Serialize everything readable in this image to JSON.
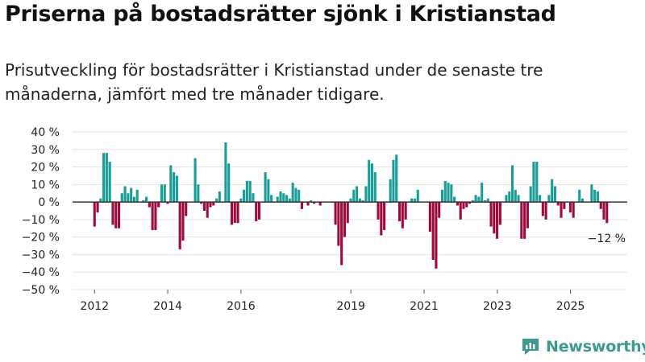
{
  "title": "Priserna på bostadsrätter sjönk i Kristianstad",
  "subtitle": "Prisutveckling för bostadsrätter i Kristianstad under de senaste tre månaderna, jämfört med tre månader tidigare.",
  "brand": "Newsworthy",
  "colors": {
    "positive": "#1a9d96",
    "negative": "#9b0b3e",
    "grid": "#e6e6e6",
    "zero_line": "#333333",
    "brand": "#3d9a8c"
  },
  "chart_data": {
    "type": "bar",
    "title": "Priserna på bostadsrätter sjönk i Kristianstad",
    "xlabel": "",
    "ylabel": "",
    "ylim": [
      -50,
      40
    ],
    "yticks": [
      40,
      30,
      20,
      10,
      0,
      -10,
      -20,
      -30,
      -40,
      -50
    ],
    "ytick_labels": [
      "40 %",
      "30 %",
      "20 %",
      "10 %",
      "0 %",
      "−10 %",
      "−20 %",
      "−30 %",
      "−40 %",
      "−50 %"
    ],
    "x_range": [
      2011.4,
      2026.55
    ],
    "xticks": [
      2012,
      2014,
      2016,
      2019,
      2021,
      2023,
      2025
    ],
    "xtick_labels": [
      "2012",
      "2014",
      "2016",
      "2019",
      "2021",
      "2023",
      "2025"
    ],
    "grid": true,
    "last_label": "−12 %",
    "start": 2012.0,
    "step": 0.0833,
    "values": [
      -14,
      -6,
      2,
      28,
      28,
      23,
      -13,
      -15,
      -15,
      5,
      9,
      5,
      8,
      3,
      7,
      null,
      1,
      3,
      -3,
      -16,
      -16,
      -3,
      10,
      10,
      -1,
      21,
      17,
      15,
      -27,
      -22,
      -8,
      null,
      null,
      25,
      10,
      -1,
      -5,
      -9,
      -3,
      -2,
      2,
      6,
      null,
      34,
      22,
      -13,
      -12,
      -12,
      2,
      7,
      12,
      12,
      5,
      -11,
      -10,
      null,
      17,
      13,
      4,
      null,
      3,
      6,
      5,
      4,
      2,
      11,
      8,
      7,
      -4,
      null,
      -2,
      1,
      -1,
      null,
      -2,
      null,
      null,
      null,
      null,
      -13,
      -25,
      -36,
      -20,
      -12,
      2,
      7,
      9,
      2,
      1,
      9,
      24,
      22,
      17,
      -10,
      -19,
      -16,
      null,
      13,
      24,
      27,
      -11,
      -15,
      -10,
      null,
      2,
      2,
      7,
      null,
      null,
      null,
      -17,
      -33,
      -38,
      -9,
      7,
      12,
      11,
      10,
      3,
      -2,
      -10,
      -4,
      -3,
      -1,
      1,
      4,
      3,
      11,
      1,
      2,
      -14,
      -18,
      -21,
      -13,
      null,
      4,
      6,
      21,
      7,
      4,
      -21,
      -21,
      -15,
      9,
      23,
      23,
      4,
      -8,
      -10,
      4,
      13,
      9,
      -2,
      -9,
      -4,
      null,
      -6,
      -9,
      null,
      7,
      2,
      null,
      null,
      10,
      7,
      6,
      -4,
      -10,
      -12
    ]
  }
}
